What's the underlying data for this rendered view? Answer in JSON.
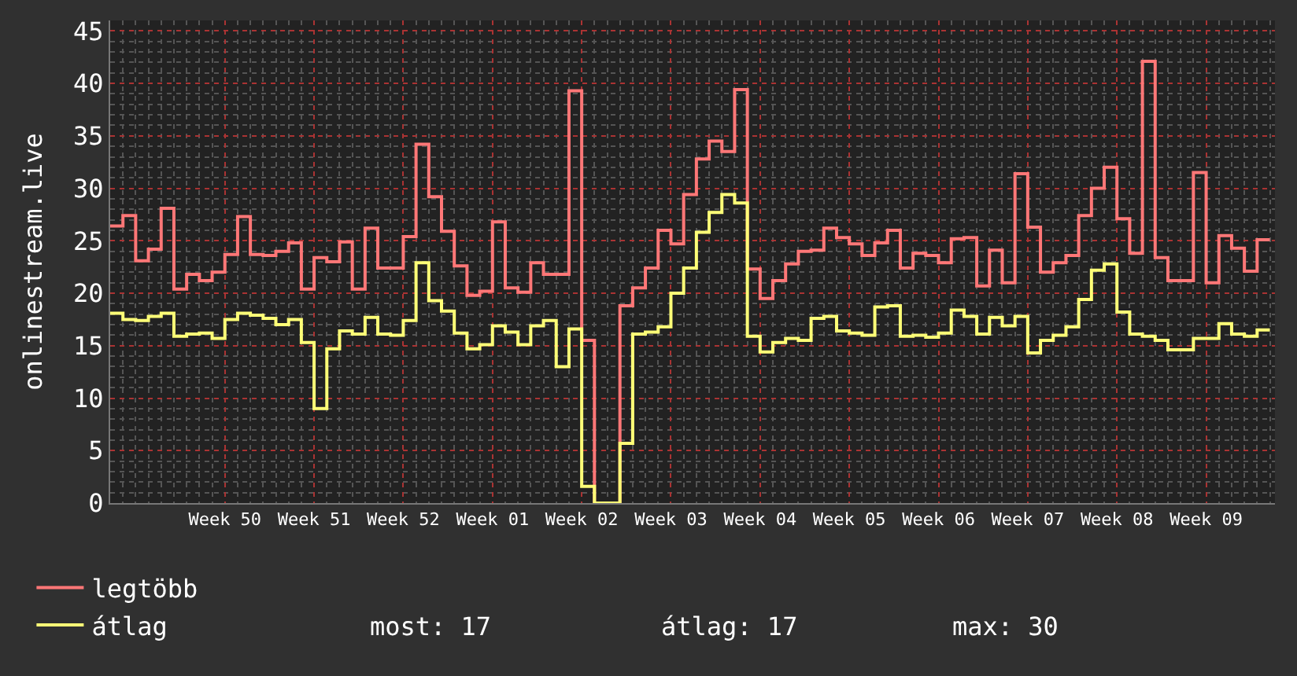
{
  "chart_data": {
    "type": "step",
    "ylabel": "onlinestream.live",
    "categories": [
      null,
      null,
      null,
      null,
      null,
      null,
      null,
      null,
      null,
      "Week 50",
      null,
      null,
      null,
      null,
      null,
      null,
      "Week 51",
      null,
      null,
      null,
      null,
      null,
      null,
      "Week 52",
      null,
      null,
      null,
      null,
      null,
      null,
      "Week 01",
      null,
      null,
      null,
      null,
      null,
      null,
      "Week 02",
      null,
      null,
      null,
      null,
      null,
      null,
      "Week 03",
      null,
      null,
      null,
      null,
      null,
      null,
      "Week 04",
      null,
      null,
      null,
      null,
      null,
      null,
      "Week 05",
      null,
      null,
      null,
      null,
      null,
      null,
      "Week 06",
      null,
      null,
      null,
      null,
      null,
      null,
      "Week 07",
      null,
      null,
      null,
      null,
      null,
      null,
      "Week 08",
      null,
      null,
      null,
      null,
      null,
      null,
      "Week 09",
      null,
      null,
      null,
      null,
      null
    ],
    "series": [
      {
        "name": "legtöbb",
        "color": "#ff7777",
        "values": [
          26.4,
          27.4,
          23.1,
          24.2,
          28.1,
          20.4,
          21.8,
          21.2,
          22.0,
          23.7,
          27.3,
          23.7,
          23.6,
          24.0,
          24.8,
          20.4,
          23.4,
          23.0,
          24.9,
          20.4,
          26.2,
          22.4,
          22.4,
          25.4,
          34.2,
          29.2,
          25.9,
          22.6,
          19.8,
          20.2,
          26.8,
          20.5,
          20.1,
          22.9,
          21.8,
          21.8,
          39.3,
          15.5,
          0,
          0,
          18.8,
          20.5,
          22.4,
          26.0,
          24.7,
          29.4,
          32.8,
          34.5,
          33.5,
          39.4,
          22.3,
          19.5,
          21.2,
          22.8,
          24.0,
          24.1,
          26.2,
          25.3,
          24.7,
          23.6,
          24.8,
          26.0,
          22.4,
          23.8,
          23.6,
          22.9,
          25.2,
          25.3,
          20.7,
          24.1,
          21.0,
          31.4,
          26.3,
          22.0,
          22.9,
          23.6,
          27.4,
          30.0,
          32.0,
          27.1,
          23.8,
          42.1,
          23.4,
          21.2,
          21.2,
          31.5,
          21.0,
          25.5,
          24.3,
          22.1,
          25.1,
          25.1
        ]
      },
      {
        "name": "átlag",
        "color": "#ffff77",
        "values": [
          18.1,
          17.5,
          17.4,
          17.8,
          18.1,
          15.9,
          16.1,
          16.2,
          15.7,
          17.5,
          18.1,
          17.9,
          17.6,
          17.0,
          17.5,
          15.3,
          9.0,
          14.7,
          16.4,
          16.1,
          17.7,
          16.1,
          16.0,
          17.4,
          22.9,
          19.3,
          18.3,
          16.2,
          14.7,
          15.1,
          16.9,
          16.3,
          15.1,
          16.9,
          17.4,
          13.0,
          16.6,
          1.6,
          0,
          0,
          5.7,
          16.1,
          16.3,
          16.8,
          20.0,
          22.4,
          25.8,
          27.7,
          29.4,
          28.6,
          15.9,
          14.4,
          15.3,
          15.7,
          15.5,
          17.6,
          17.8,
          16.4,
          16.2,
          16.0,
          18.7,
          18.8,
          15.9,
          16.0,
          15.8,
          16.2,
          18.4,
          17.8,
          16.1,
          17.7,
          16.9,
          17.8,
          14.3,
          15.5,
          16.0,
          16.8,
          19.4,
          22.2,
          22.8,
          18.2,
          16.1,
          15.9,
          15.5,
          14.6,
          14.6,
          15.7,
          15.7,
          17.1,
          16.1,
          15.9,
          16.5,
          16.5
        ]
      }
    ],
    "ylim": [
      0,
      46
    ],
    "yticks": [
      0,
      5,
      10,
      15,
      20,
      25,
      30,
      35,
      40,
      45
    ],
    "grid": true,
    "legend": "bottom left",
    "annotations": [
      "most: 17",
      "átlag: 17",
      "max: 30"
    ]
  }
}
